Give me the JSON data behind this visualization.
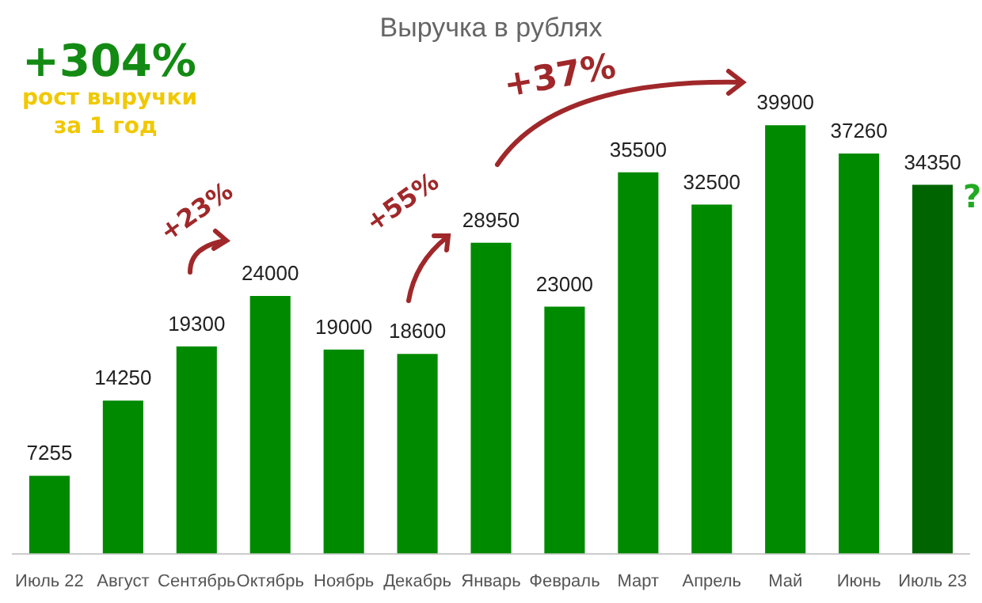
{
  "chart_data": {
    "type": "bar",
    "title": "Выручка в рублях",
    "categories": [
      "Июль 22",
      "Август",
      "Сентябрь",
      "Октябрь",
      "Ноябрь",
      "Декабрь",
      "Январь",
      "Февраль",
      "Март",
      "Апрель",
      "Май",
      "Июнь",
      "Июль 23"
    ],
    "values": [
      7255,
      14250,
      19300,
      24000,
      19000,
      18600,
      28950,
      23000,
      35500,
      32500,
      39900,
      37260,
      34350
    ],
    "colors": [
      "#008a00",
      "#008a00",
      "#008a00",
      "#008a00",
      "#008a00",
      "#008a00",
      "#008a00",
      "#008a00",
      "#008a00",
      "#008a00",
      "#008a00",
      "#008a00",
      "#006400"
    ],
    "data_labels": true,
    "grid": false,
    "legend": false,
    "annotations": [
      "+304%",
      "рост выручки",
      "за 1 год",
      "+23%",
      "+55%",
      "+37%",
      "?"
    ]
  }
}
